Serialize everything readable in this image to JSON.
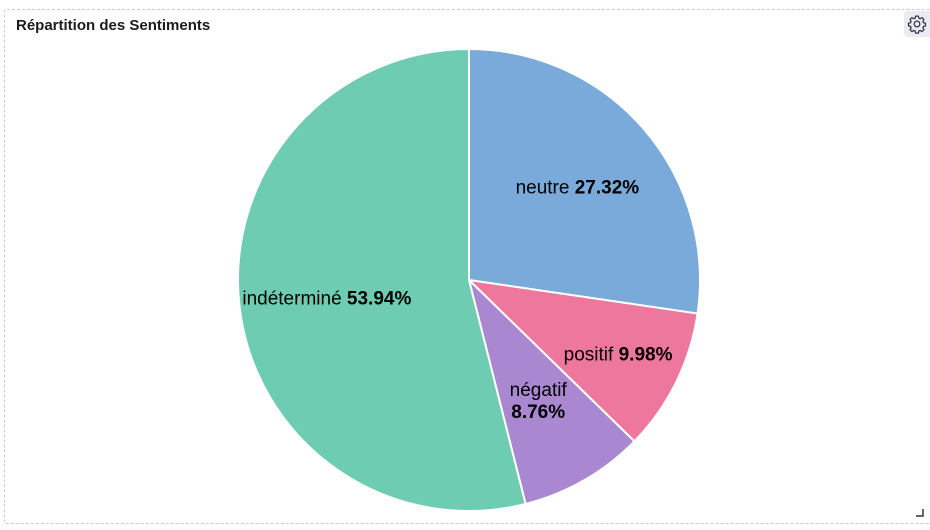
{
  "panel": {
    "title": "Répartition des Sentiments",
    "settings_icon": "gear-icon",
    "resize_icon": "resize-corner-icon"
  },
  "chart_data": {
    "type": "pie",
    "title": "Répartition des Sentiments",
    "slices": [
      {
        "label": "neutre",
        "value": 27.32,
        "value_text": "27.32%",
        "color": "#79aad9"
      },
      {
        "label": "positif",
        "value": 9.98,
        "value_text": "9.98%",
        "color": "#ee789d"
      },
      {
        "label": "négatif",
        "value": 8.76,
        "value_text": "8.76%",
        "color": "#a987d1"
      },
      {
        "label": "indéterminé",
        "value": 53.94,
        "value_text": "53.94%",
        "color": "#6dccb1"
      }
    ],
    "start_angle_deg": 0,
    "direction": "clockwise",
    "legend": "none",
    "labels": "inside"
  }
}
